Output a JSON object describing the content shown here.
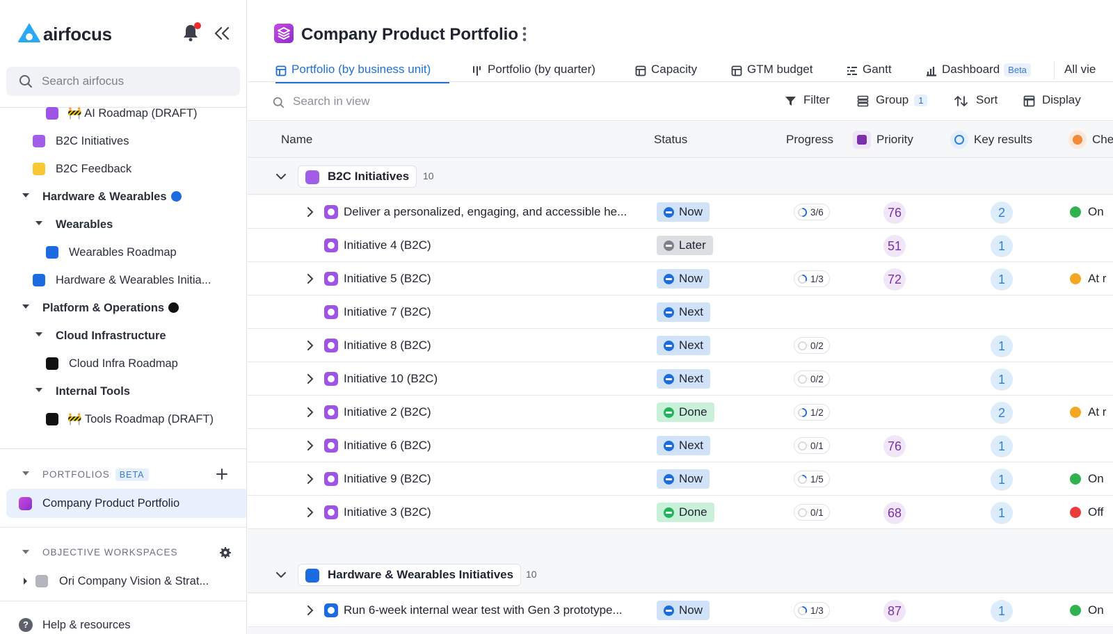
{
  "app": {
    "name": "airfocus",
    "search_placeholder": "Search airfocus"
  },
  "sidebar": {
    "items": [
      {
        "label": "🚧 AI Roadmap (DRAFT)"
      },
      {
        "label": "B2C Initiatives"
      },
      {
        "label": "B2C Feedback"
      },
      {
        "label": "Hardware & Wearables"
      },
      {
        "label": "Wearables"
      },
      {
        "label": "Wearables Roadmap"
      },
      {
        "label": "Hardware & Wearables Initia..."
      },
      {
        "label": "Platform & Operations"
      },
      {
        "label": "Cloud Infrastructure"
      },
      {
        "label": "Cloud Infra Roadmap"
      },
      {
        "label": "Internal Tools"
      },
      {
        "label": "🚧 Tools Roadmap (DRAFT)"
      }
    ],
    "portfolios_header": "PORTFOLIOS",
    "portfolios_badge": "BETA",
    "portfolio_active": "Company Product Portfolio",
    "objective_header": "OBJECTIVE WORKSPACES",
    "objective_item": "Ori Company Vision & Strat...",
    "help": "Help & resources"
  },
  "main": {
    "title": "Company Product Portfolio",
    "tabs": [
      {
        "label": "Portfolio (by business unit)"
      },
      {
        "label": "Portfolio (by quarter)"
      },
      {
        "label": "Capacity"
      },
      {
        "label": "GTM budget"
      },
      {
        "label": "Gantt"
      },
      {
        "label": "Dashboard"
      },
      {
        "label": "All vie"
      }
    ],
    "dashboard_badge": "Beta",
    "toolbar": {
      "search_placeholder": "Search in view",
      "filter": "Filter",
      "group": "Group",
      "group_count": "1",
      "sort": "Sort",
      "display": "Display"
    },
    "columns": {
      "name": "Name",
      "status": "Status",
      "progress": "Progress",
      "priority": "Priority",
      "key_results": "Key results",
      "check": "Che"
    },
    "groups": [
      {
        "name": "B2C Initiatives",
        "count": "10",
        "rows": [
          {
            "name": "Deliver a personalized, engaging, and accessible he...",
            "status": "Now",
            "progress": "3/6",
            "priority": "76",
            "kr": "2",
            "check": "On"
          },
          {
            "name": "Initiative 4 (B2C)",
            "status": "Later",
            "progress": "",
            "priority": "51",
            "kr": "1",
            "check": ""
          },
          {
            "name": "Initiative 5 (B2C)",
            "status": "Now",
            "progress": "1/3",
            "priority": "72",
            "kr": "1",
            "check": "At r"
          },
          {
            "name": "Initiative 7 (B2C)",
            "status": "Next",
            "progress": "",
            "priority": "",
            "kr": "",
            "check": ""
          },
          {
            "name": "Initiative 8 (B2C)",
            "status": "Next",
            "progress": "0/2",
            "priority": "",
            "kr": "1",
            "check": ""
          },
          {
            "name": "Initiative 10 (B2C)",
            "status": "Next",
            "progress": "0/2",
            "priority": "",
            "kr": "1",
            "check": ""
          },
          {
            "name": "Initiative 2 (B2C)",
            "status": "Done",
            "progress": "1/2",
            "priority": "",
            "kr": "2",
            "check": "At r"
          },
          {
            "name": "Initiative 6 (B2C)",
            "status": "Next",
            "progress": "0/1",
            "priority": "76",
            "kr": "1",
            "check": ""
          },
          {
            "name": "Initiative 9 (B2C)",
            "status": "Now",
            "progress": "1/5",
            "priority": "",
            "kr": "1",
            "check": "On"
          },
          {
            "name": "Initiative 3 (B2C)",
            "status": "Done",
            "progress": "0/1",
            "priority": "68",
            "kr": "1",
            "check": "Off"
          }
        ]
      },
      {
        "name": "Hardware & Wearables Initiatives",
        "count": "10",
        "rows": [
          {
            "name": "Run 6-week internal wear test with Gen 3 prototype...",
            "status": "Now",
            "progress": "1/3",
            "priority": "87",
            "kr": "1",
            "check": "On"
          }
        ]
      }
    ]
  },
  "colors": {
    "accent": "#1e6fd9",
    "on_track": "#2fb24f",
    "at_risk": "#f5a623",
    "off_track": "#ec3b3b"
  }
}
